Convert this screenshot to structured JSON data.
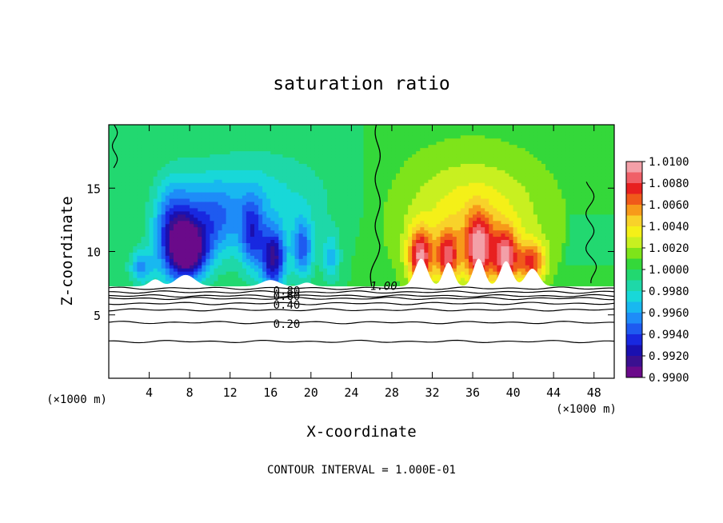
{
  "chart_data": {
    "type": "heatmap",
    "title": "saturation ratio",
    "xlabel": "X-coordinate",
    "ylabel": "Z-coordinate",
    "x_unit": "(×1000 m)",
    "y_unit": "(×1000 m)",
    "xlim": [
      0,
      50
    ],
    "ylim": [
      0,
      20
    ],
    "x_ticks": [
      4,
      8,
      12,
      16,
      20,
      24,
      28,
      32,
      36,
      40,
      44,
      48
    ],
    "y_ticks": [
      5,
      10,
      15
    ],
    "footer": "CONTOUR INTERVAL = 1.000E-01",
    "colorbar": {
      "min": 0.99,
      "max": 1.01,
      "labels": [
        "1.0100",
        "1.0080",
        "1.0060",
        "1.0040",
        "1.0020",
        "1.0000",
        "0.9980",
        "0.9960",
        "0.9940",
        "0.9920",
        "0.9900"
      ],
      "colors": [
        "#f3a0a8",
        "#f06068",
        "#e82020",
        "#f05a1a",
        "#f79a1a",
        "#f8d22a",
        "#f4f018",
        "#c8f020",
        "#7ee41a",
        "#34d83a",
        "#22d870",
        "#1ed8a8",
        "#18d8d8",
        "#18b8f0",
        "#1e8cf8",
        "#1e5af0",
        "#1828e0",
        "#1a10b0",
        "#3a1090",
        "#6a0a8a"
      ]
    },
    "contour_labels": [
      {
        "text": "1.00",
        "x": 27.2,
        "z": 7.3
      },
      {
        "text": "0.80",
        "x": 17.6,
        "z": 6.9
      },
      {
        "text": "0.60",
        "x": 17.6,
        "z": 6.5
      },
      {
        "text": "0.40",
        "x": 17.6,
        "z": 5.8
      },
      {
        "text": "0.20",
        "x": 17.6,
        "z": 4.3
      }
    ],
    "contour_levels_lower": [
      7.1,
      6.8,
      6.5,
      6.3,
      5.9,
      5.4,
      4.4,
      2.9
    ],
    "fields": [
      {
        "kind": "dry",
        "x": 3.2,
        "z": 8.8,
        "sx": 1.2,
        "sz": 1.4,
        "amp": -0.004
      },
      {
        "kind": "dry",
        "x": 6.4,
        "z": 11.5,
        "sx": 2.0,
        "sz": 3.8,
        "amp": -0.0065
      },
      {
        "kind": "dry",
        "x": 8.0,
        "z": 10.0,
        "sx": 1.8,
        "sz": 2.2,
        "amp": -0.008
      },
      {
        "kind": "dry",
        "x": 10.2,
        "z": 12.5,
        "sx": 2.8,
        "sz": 3.2,
        "amp": -0.004
      },
      {
        "kind": "dry",
        "x": 14.2,
        "z": 11.3,
        "sx": 1.2,
        "sz": 3.0,
        "amp": -0.0048
      },
      {
        "kind": "dry",
        "x": 16.3,
        "z": 9.4,
        "sx": 1.2,
        "sz": 2.4,
        "amp": -0.0078
      },
      {
        "kind": "dry",
        "x": 19.2,
        "z": 10.2,
        "sx": 1.0,
        "sz": 2.4,
        "amp": -0.005
      },
      {
        "kind": "dry",
        "x": 22.0,
        "z": 9.5,
        "sx": 0.9,
        "sz": 2.0,
        "amp": -0.0032
      },
      {
        "kind": "dry",
        "x": 15.0,
        "z": 14.0,
        "sx": 7.0,
        "sz": 4.0,
        "amp": -0.0025
      },
      {
        "kind": "wet",
        "x": 36.0,
        "z": 12.5,
        "sx": 7.0,
        "sz": 5.0,
        "amp": 0.0035
      },
      {
        "kind": "wet",
        "x": 30.8,
        "z": 9.6,
        "sx": 1.2,
        "sz": 2.2,
        "amp": 0.0075
      },
      {
        "kind": "wet",
        "x": 33.5,
        "z": 9.6,
        "sx": 1.1,
        "sz": 2.0,
        "amp": 0.0062
      },
      {
        "kind": "wet",
        "x": 36.6,
        "z": 10.2,
        "sx": 1.3,
        "sz": 2.6,
        "amp": 0.0075
      },
      {
        "kind": "wet",
        "x": 39.2,
        "z": 9.6,
        "sx": 1.2,
        "sz": 2.2,
        "amp": 0.0072
      },
      {
        "kind": "wet",
        "x": 41.8,
        "z": 9.2,
        "sx": 1.4,
        "sz": 1.6,
        "amp": 0.006
      }
    ]
  }
}
